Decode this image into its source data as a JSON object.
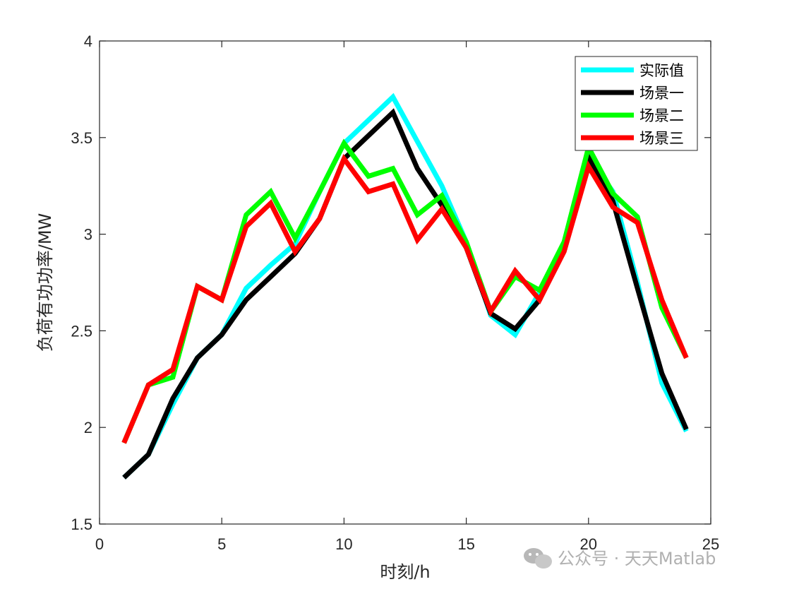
{
  "chart_data": {
    "type": "line",
    "title": "",
    "xlabel": "时刻/h",
    "ylabel": "负荷有功功率/MW",
    "xlim": [
      0,
      25
    ],
    "ylim": [
      1.5,
      4
    ],
    "xticks": [
      0,
      5,
      10,
      15,
      20,
      25
    ],
    "yticks": [
      1.5,
      2,
      2.5,
      3,
      3.5,
      4
    ],
    "xtick_labels": [
      "0",
      "5",
      "10",
      "15",
      "20",
      "25"
    ],
    "ytick_labels": [
      "1.5",
      "2",
      "2.5",
      "3",
      "3.5",
      "4"
    ],
    "grid": false,
    "legend_position": "top-right",
    "x": [
      1,
      2,
      3,
      4,
      5,
      6,
      7,
      8,
      9,
      10,
      11,
      12,
      13,
      14,
      15,
      16,
      17,
      18,
      19,
      20,
      21,
      22,
      23,
      24
    ],
    "series": [
      {
        "name": "实际值",
        "color": "#00ffff",
        "values": [
          1.74,
          1.86,
          2.12,
          2.36,
          2.48,
          2.72,
          2.84,
          2.95,
          3.22,
          3.47,
          3.59,
          3.71,
          3.48,
          3.25,
          2.96,
          2.58,
          2.48,
          2.7,
          2.93,
          3.4,
          3.22,
          2.75,
          2.23,
          1.98
        ]
      },
      {
        "name": "场景一",
        "color": "#000000",
        "values": [
          1.74,
          1.86,
          2.15,
          2.36,
          2.48,
          2.66,
          2.78,
          2.9,
          3.08,
          3.39,
          3.51,
          3.63,
          3.34,
          3.15,
          2.93,
          2.59,
          2.51,
          2.66,
          2.93,
          3.4,
          3.17,
          2.72,
          2.28,
          1.99
        ]
      },
      {
        "name": "场景二",
        "color": "#00ff00",
        "values": [
          1.92,
          2.22,
          2.26,
          2.73,
          2.66,
          3.1,
          3.22,
          2.98,
          3.22,
          3.47,
          3.3,
          3.34,
          3.1,
          3.2,
          2.96,
          2.6,
          2.78,
          2.71,
          2.96,
          3.45,
          3.21,
          3.09,
          2.62,
          2.36
        ]
      },
      {
        "name": "场景三",
        "color": "#ff0000",
        "values": [
          1.92,
          2.22,
          2.3,
          2.73,
          2.66,
          3.04,
          3.16,
          2.91,
          3.08,
          3.39,
          3.22,
          3.26,
          2.97,
          3.13,
          2.93,
          2.6,
          2.81,
          2.66,
          2.91,
          3.35,
          3.14,
          3.06,
          2.66,
          2.36
        ]
      }
    ]
  },
  "watermark": {
    "text": "公众号 · 天天Matlab",
    "icon": "wechat-icon"
  }
}
